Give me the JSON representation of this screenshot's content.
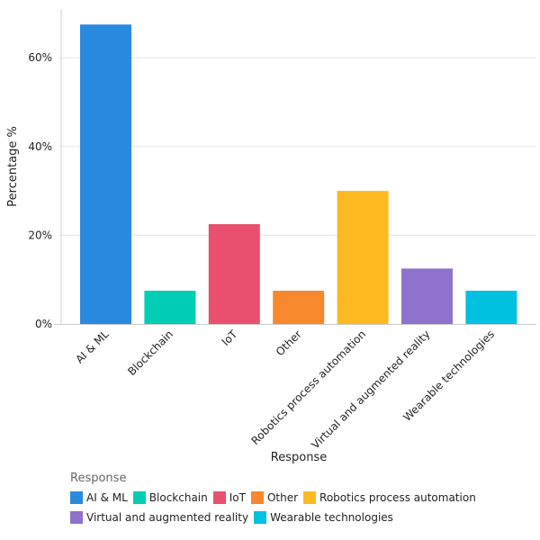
{
  "chart_data": {
    "type": "bar",
    "categories": [
      "AI & ML",
      "Blockchain",
      "IoT",
      "Other",
      "Robotics process automation",
      "Virtual and augmented reality",
      "Wearable technologies"
    ],
    "values": [
      67.5,
      7.5,
      22.5,
      7.5,
      30,
      12.5,
      7.5
    ],
    "colors": [
      "#2a8ae0",
      "#00cdb3",
      "#e8506e",
      "#f7882d",
      "#fdb920",
      "#8f72cc",
      "#00c1e0"
    ],
    "xlabel": "Response",
    "ylabel": "Percentage %",
    "ylim": [
      0,
      70
    ],
    "yticks": [
      0,
      20,
      40,
      60
    ],
    "ytick_labels": [
      "0%",
      "20%",
      "40%",
      "60%"
    ],
    "grid": true,
    "legend": {
      "title": "Response",
      "placement": "bottom-left"
    }
  }
}
